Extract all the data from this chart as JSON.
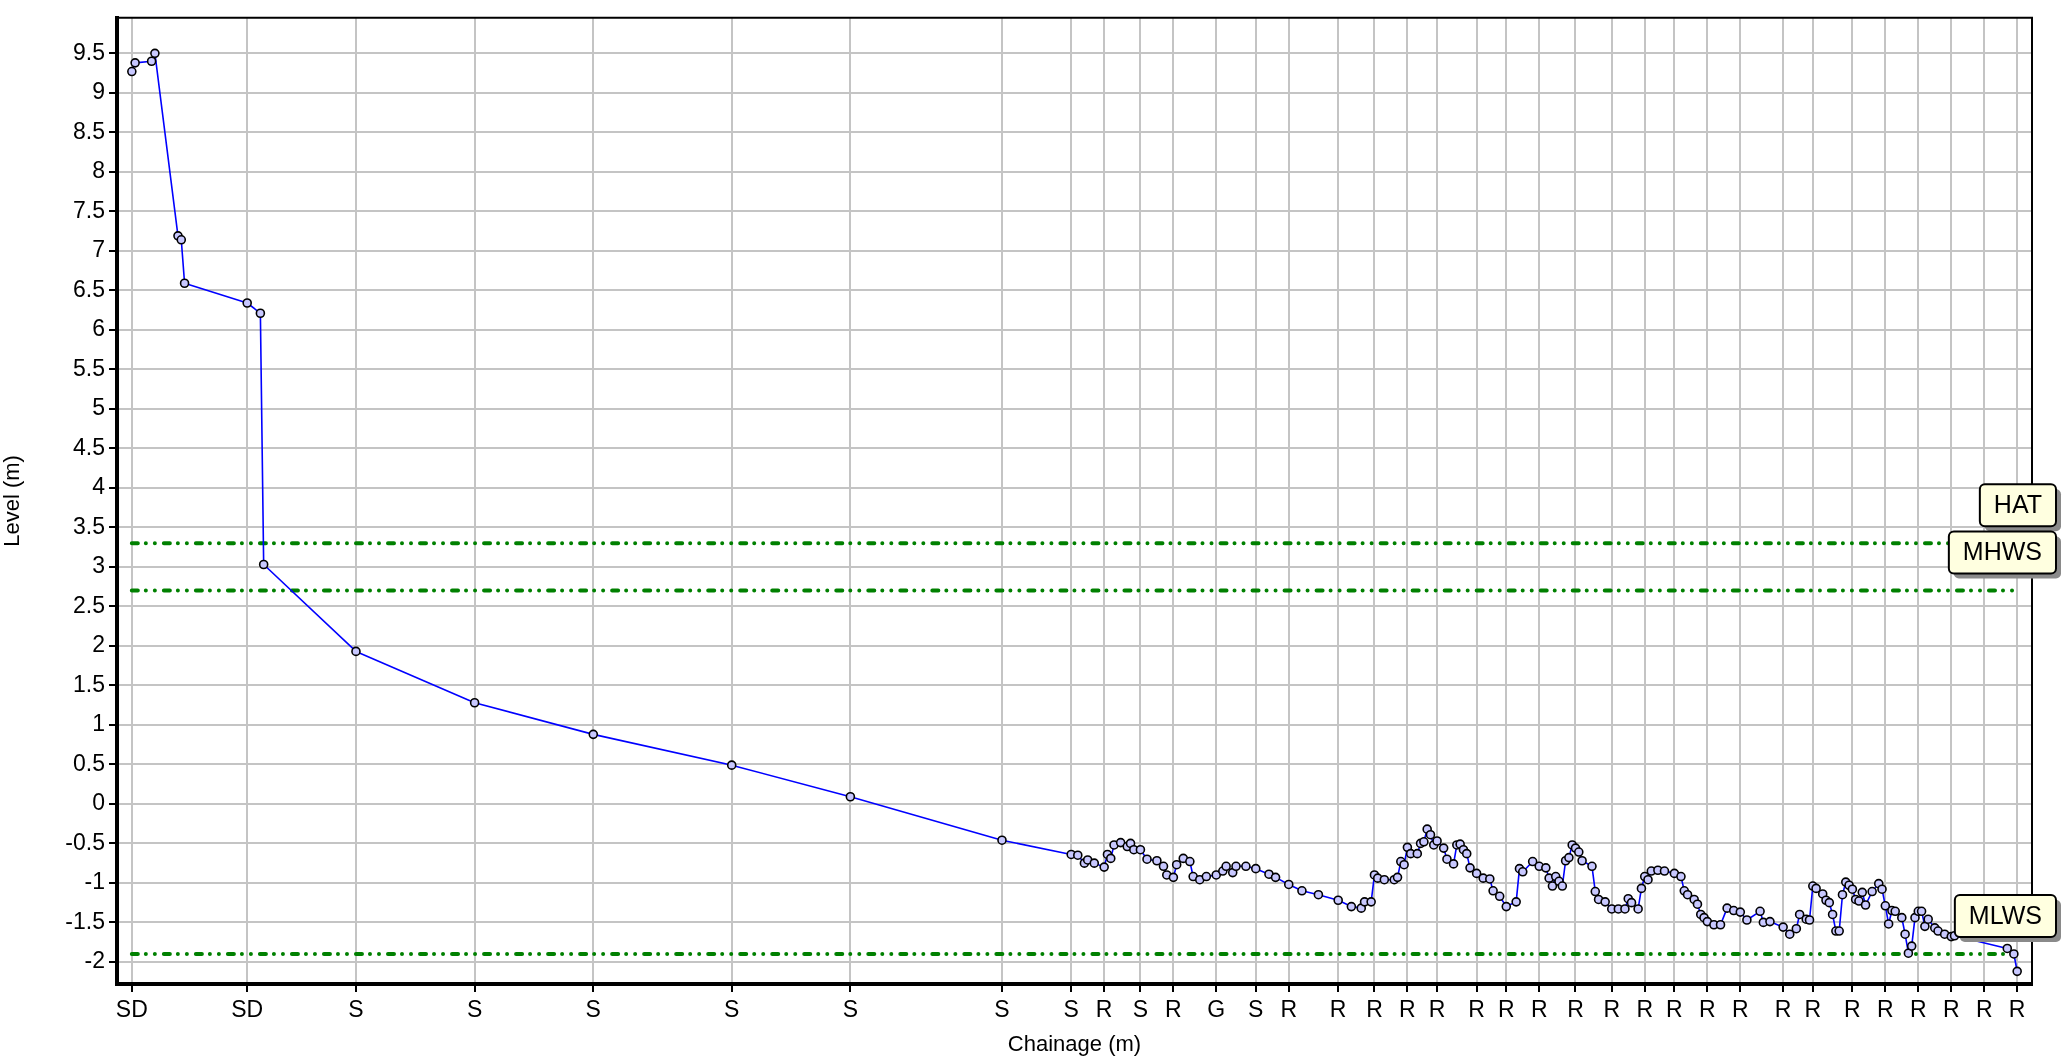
{
  "chart_data": {
    "type": "line",
    "xlabel": "Chainage (m)",
    "ylabel": "Level (m)",
    "categories": [
      "SD",
      null,
      null,
      null,
      null,
      null,
      null,
      null,
      null,
      null,
      null,
      null,
      null,
      null,
      null,
      null,
      null,
      null,
      null,
      null,
      null,
      null,
      null,
      null,
      null,
      null,
      null,
      null,
      null,
      null,
      null,
      null,
      null,
      null,
      null,
      "SD",
      null,
      null,
      null,
      null,
      null,
      null,
      null,
      null,
      null,
      null,
      null,
      null,
      null,
      null,
      null,
      null,
      null,
      null,
      null,
      null,
      null,
      null,
      null,
      null,
      null,
      null,
      null,
      null,
      null,
      null,
      null,
      null,
      "S",
      null,
      null,
      null,
      null,
      null,
      null,
      null,
      null,
      null,
      null,
      null,
      null,
      null,
      null,
      null,
      null,
      null,
      null,
      null,
      null,
      null,
      null,
      null,
      null,
      null,
      null,
      null,
      null,
      null,
      null,
      null,
      null,
      null,
      null,
      null,
      "S",
      null,
      null,
      null,
      null,
      null,
      null,
      null,
      null,
      null,
      null,
      null,
      null,
      null,
      null,
      null,
      null,
      null,
      null,
      null,
      null,
      null,
      null,
      null,
      null,
      null,
      null,
      null,
      null,
      null,
      null,
      null,
      null,
      null,
      null,
      null,
      "S",
      null,
      null,
      null,
      null,
      null,
      null,
      null,
      null,
      null,
      null,
      null,
      null,
      null,
      null,
      null,
      null,
      null,
      null,
      null,
      null,
      null,
      null,
      null,
      null,
      null,
      null,
      null,
      null,
      null,
      null,
      null,
      null,
      null,
      null,
      null,
      null,
      null,
      null,
      null,
      null,
      null,
      "S",
      null,
      null,
      null,
      null,
      null,
      null,
      null,
      null,
      null,
      null,
      null,
      null,
      null,
      null,
      null,
      null,
      null,
      null,
      null,
      null,
      null,
      null,
      null,
      null,
      null,
      null,
      null,
      null,
      null,
      null,
      null,
      null,
      null,
      null,
      null,
      "S",
      null,
      null,
      null,
      null,
      null,
      null,
      null,
      null,
      null,
      null,
      null,
      null,
      null,
      null,
      null,
      null,
      null,
      null,
      null,
      null,
      null,
      null,
      null,
      null,
      null,
      null,
      null,
      null,
      null,
      null,
      null,
      null,
      null,
      null,
      null,
      null,
      null,
      null,
      null,
      null,
      null,
      null,
      null,
      null,
      null,
      "S",
      null,
      null,
      null,
      null,
      null,
      null,
      null,
      null,
      null,
      null,
      null,
      null,
      null,
      null,
      null,
      null,
      null,
      null,
      null,
      null,
      "S",
      null,
      null,
      null,
      null,
      null,
      null,
      null,
      null,
      null,
      "R",
      null,
      null,
      null,
      null,
      null,
      null,
      null,
      null,
      null,
      null,
      "S",
      null,
      null,
      null,
      null,
      null,
      null,
      null,
      null,
      null,
      "R",
      null,
      null,
      null,
      null,
      null,
      null,
      null,
      null,
      null,
      null,
      null,
      null,
      "G",
      null,
      null,
      null,
      null,
      null,
      null,
      null,
      null,
      null,
      null,
      null,
      "S",
      null,
      null,
      null,
      null,
      null,
      null,
      null,
      null,
      null,
      "R",
      null,
      null,
      null,
      null,
      null,
      null,
      null,
      null,
      null,
      null,
      null,
      null,
      null,
      null,
      "R",
      null,
      null,
      null,
      null,
      null,
      null,
      null,
      null,
      null,
      null,
      "R",
      null,
      null,
      null,
      null,
      null,
      null,
      null,
      null,
      null,
      "R",
      null,
      null,
      null,
      null,
      null,
      null,
      null,
      null,
      "R",
      null,
      null,
      null,
      null,
      null,
      null,
      null,
      null,
      null,
      null,
      null,
      "R",
      null,
      null,
      null,
      null,
      null,
      null,
      null,
      null,
      "R",
      null,
      null,
      null,
      null,
      null,
      null,
      null,
      null,
      null,
      "R",
      null,
      null,
      null,
      null,
      null,
      null,
      null,
      null,
      null,
      null,
      "R",
      null,
      null,
      null,
      null,
      null,
      null,
      null,
      null,
      null,
      null,
      "R",
      null,
      null,
      null,
      null,
      null,
      null,
      null,
      null,
      null,
      "R",
      null,
      null,
      null,
      null,
      null,
      null,
      null,
      null,
      "R",
      null,
      null,
      null,
      null,
      null,
      null,
      null,
      null,
      null,
      "R",
      null,
      null,
      null,
      null,
      null,
      null,
      null,
      null,
      null,
      "R",
      null,
      null,
      null,
      null,
      null,
      null,
      null,
      null,
      null,
      null,
      null,
      null,
      "R",
      null,
      null,
      null,
      null,
      null,
      null,
      null,
      null,
      "R",
      null,
      null,
      null,
      null,
      null,
      null,
      null,
      null,
      null,
      null,
      null,
      "R",
      null,
      null,
      null,
      null,
      null,
      null,
      null,
      null,
      null,
      "R",
      null,
      null,
      null,
      null,
      null,
      null,
      null,
      null,
      null,
      "R",
      null,
      null,
      null,
      null,
      null,
      null,
      null,
      null,
      null,
      "R",
      null,
      null,
      null,
      null,
      null,
      null,
      null,
      null,
      null,
      "R",
      null,
      null,
      null,
      null,
      null,
      null,
      null,
      null,
      null,
      "R"
    ],
    "series": [
      {
        "color": "#0000ff",
        "values": [
          9.27,
          9.38,
          null,
          null,
          null,
          null,
          9.4,
          9.5,
          null,
          null,
          null,
          null,
          null,
          null,
          7.19,
          7.14,
          6.59,
          null,
          null,
          null,
          null,
          null,
          null,
          null,
          null,
          null,
          null,
          null,
          null,
          null,
          null,
          null,
          null,
          null,
          null,
          6.34,
          null,
          null,
          null,
          6.21,
          3.03,
          null,
          null,
          null,
          null,
          null,
          null,
          null,
          null,
          null,
          null,
          null,
          null,
          null,
          null,
          null,
          null,
          null,
          null,
          null,
          null,
          null,
          null,
          null,
          null,
          null,
          null,
          null,
          1.93,
          null,
          null,
          null,
          null,
          null,
          null,
          null,
          null,
          null,
          null,
          null,
          null,
          null,
          null,
          null,
          null,
          null,
          null,
          null,
          null,
          null,
          null,
          null,
          null,
          null,
          null,
          null,
          null,
          null,
          null,
          null,
          null,
          null,
          null,
          null,
          1.28,
          null,
          null,
          null,
          null,
          null,
          null,
          null,
          null,
          null,
          null,
          null,
          null,
          null,
          null,
          null,
          null,
          null,
          null,
          null,
          null,
          null,
          null,
          null,
          null,
          null,
          null,
          null,
          null,
          null,
          null,
          null,
          null,
          null,
          null,
          null,
          0.88,
          null,
          null,
          null,
          null,
          null,
          null,
          null,
          null,
          null,
          null,
          null,
          null,
          null,
          null,
          null,
          null,
          null,
          null,
          null,
          null,
          null,
          null,
          null,
          null,
          null,
          null,
          null,
          null,
          null,
          null,
          null,
          null,
          null,
          null,
          null,
          null,
          null,
          null,
          null,
          null,
          null,
          0.49,
          null,
          null,
          null,
          null,
          null,
          null,
          null,
          null,
          null,
          null,
          null,
          null,
          null,
          null,
          null,
          null,
          null,
          null,
          null,
          null,
          null,
          null,
          null,
          null,
          null,
          null,
          null,
          null,
          null,
          null,
          null,
          null,
          null,
          null,
          null,
          0.09,
          null,
          null,
          null,
          null,
          null,
          null,
          null,
          null,
          null,
          null,
          null,
          null,
          null,
          null,
          null,
          null,
          null,
          null,
          null,
          null,
          null,
          null,
          null,
          null,
          null,
          null,
          null,
          null,
          null,
          null,
          null,
          null,
          null,
          null,
          null,
          null,
          null,
          null,
          null,
          null,
          null,
          null,
          null,
          null,
          null,
          -0.46,
          null,
          null,
          null,
          null,
          null,
          null,
          null,
          null,
          null,
          null,
          null,
          null,
          null,
          null,
          null,
          null,
          null,
          null,
          null,
          null,
          -0.64,
          null,
          -0.65,
          null,
          -0.75,
          -0.71,
          null,
          -0.75,
          null,
          null,
          -0.8,
          -0.64,
          -0.69,
          -0.52,
          null,
          -0.49,
          null,
          -0.54,
          -0.5,
          -0.58,
          null,
          -0.58,
          null,
          -0.7,
          null,
          null,
          -0.72,
          null,
          -0.79,
          -0.9,
          null,
          -0.93,
          -0.77,
          null,
          -0.69,
          null,
          -0.73,
          -0.92,
          null,
          -0.96,
          null,
          -0.92,
          null,
          null,
          -0.9,
          null,
          -0.85,
          -0.79,
          null,
          -0.87,
          -0.79,
          null,
          null,
          -0.79,
          null,
          null,
          -0.82,
          null,
          null,
          null,
          -0.89,
          null,
          -0.93,
          null,
          null,
          null,
          -1.02,
          null,
          null,
          null,
          -1.1,
          null,
          null,
          null,
          null,
          -1.15,
          null,
          null,
          null,
          null,
          null,
          -1.22,
          null,
          null,
          null,
          -1.3,
          null,
          null,
          -1.32,
          -1.24,
          null,
          -1.24,
          -0.9,
          -0.94,
          null,
          -0.96,
          null,
          null,
          -0.96,
          -0.93,
          -0.73,
          -0.77,
          -0.55,
          -0.63,
          null,
          -0.63,
          -0.5,
          -0.48,
          -0.32,
          -0.39,
          -0.52,
          -0.47,
          null,
          -0.56,
          -0.7,
          null,
          -0.76,
          -0.52,
          -0.51,
          -0.58,
          -0.63,
          -0.81,
          null,
          -0.88,
          null,
          -0.94,
          null,
          -0.95,
          -1.1,
          null,
          -1.17,
          null,
          -1.3,
          null,
          null,
          -1.24,
          -0.82,
          -0.86,
          null,
          null,
          -0.73,
          null,
          -0.79,
          null,
          -0.81,
          -0.94,
          -1.04,
          -0.92,
          -0.98,
          -1.04,
          -0.72,
          -0.68,
          -0.52,
          -0.56,
          -0.61,
          -0.72,
          null,
          null,
          -0.79,
          -1.11,
          -1.21,
          null,
          -1.24,
          null,
          -1.33,
          null,
          -1.33,
          null,
          -1.33,
          -1.2,
          -1.25,
          null,
          -1.33,
          -1.07,
          -0.92,
          -0.96,
          -0.85,
          null,
          -0.84,
          null,
          -0.85,
          null,
          null,
          -0.88,
          null,
          -0.92,
          -1.1,
          -1.15,
          null,
          -1.21,
          -1.27,
          -1.4,
          -1.44,
          -1.49,
          null,
          -1.53,
          null,
          -1.53,
          null,
          -1.32,
          null,
          -1.35,
          null,
          -1.37,
          null,
          -1.47,
          null,
          null,
          null,
          -1.36,
          -1.5,
          null,
          -1.49,
          null,
          null,
          null,
          -1.56,
          null,
          -1.65,
          null,
          -1.58,
          -1.4,
          null,
          -1.46,
          -1.47,
          -1.04,
          -1.07,
          null,
          -1.14,
          -1.22,
          -1.25,
          -1.4,
          -1.61,
          -1.61,
          -1.15,
          -0.99,
          -1.03,
          -1.08,
          -1.21,
          -1.23,
          -1.12,
          -1.28,
          null,
          -1.11,
          null,
          -1.01,
          -1.08,
          -1.29,
          -1.52,
          -1.35,
          -1.36,
          null,
          -1.44,
          -1.65,
          -1.89,
          -1.8,
          -1.44,
          -1.36,
          -1.36,
          -1.55,
          -1.46,
          null,
          -1.57,
          -1.61,
          null,
          -1.65,
          null,
          -1.68,
          -1.67,
          null,
          null,
          null,
          null,
          null,
          null,
          null,
          null,
          null,
          null,
          null,
          null,
          null,
          null,
          null,
          -1.83,
          null,
          -1.9,
          -2.12
        ]
      }
    ],
    "ylim": [
      -2.28,
      9.95
    ],
    "yticks": [
      -2,
      -1.5,
      -1,
      -0.5,
      0,
      0.5,
      1,
      1.5,
      2,
      2.5,
      3,
      3.5,
      4,
      4.5,
      5,
      5.5,
      6,
      6.5,
      7,
      7.5,
      8,
      8.5,
      9,
      9.5
    ],
    "grid": true,
    "marker": "circle",
    "ref_lines": [
      {
        "axis": "y",
        "value": 3.3,
        "label": "HAT",
        "color": "#008000",
        "line_style": "dashed"
      },
      {
        "axis": "y",
        "value": 2.7,
        "label": "MHWS",
        "color": "#008000",
        "line_style": "dashed"
      },
      {
        "axis": "y",
        "value": -1.9,
        "label": "MLWS",
        "color": "#008000",
        "line_style": "dashed"
      }
    ]
  }
}
